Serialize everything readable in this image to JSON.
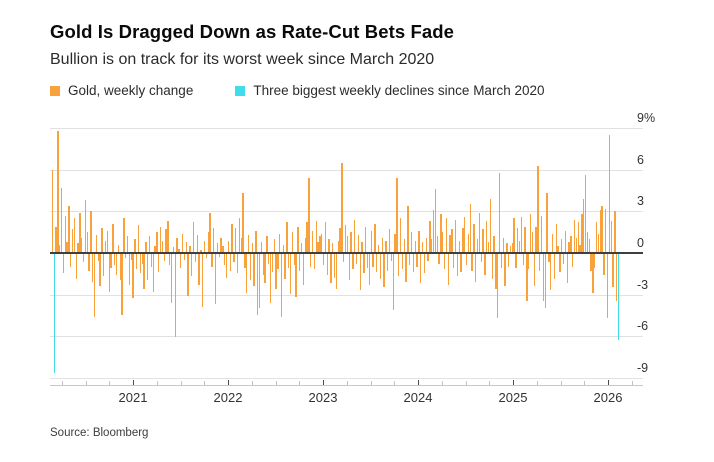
{
  "header": {
    "title": "Gold Is Dragged Down as Rate-Cut Bets Fade",
    "subtitle": "Bullion is on track for its worst week since March 2020"
  },
  "legend": {
    "items": [
      {
        "label": "Gold, weekly change",
        "color": "#F9A13A"
      },
      {
        "label": "Three biggest weekly declines since March 2020",
        "color": "#3EDDE9"
      }
    ]
  },
  "footer": {
    "source": "Source: Bloomberg"
  },
  "chart_data": {
    "type": "bar",
    "title": "Gold Is Dragged Down as Rate-Cut Bets Fade",
    "subtitle": "Bullion is on track for its worst week since March 2020",
    "unit": "%",
    "frequency": "weekly",
    "period_start": "2020-03",
    "period_end": "2026-02",
    "grid": true,
    "legend_position": "top",
    "ylim": [
      -9.5,
      9.5
    ],
    "ytick_values": [
      9,
      6,
      3,
      0,
      -3,
      -6,
      -9
    ],
    "ytick_labels": [
      "9%",
      "6",
      "3",
      "0",
      "-3",
      "-6",
      "-9"
    ],
    "xtick_labels": [
      "2021",
      "2022",
      "2023",
      "2024",
      "2025",
      "2026"
    ],
    "series_name": "Gold, weekly change",
    "series_color": "#F9A13A",
    "highlight_name": "Three biggest weekly declines since March 2020",
    "highlight_color": "#3EDDE9",
    "highlight_indexes": [
      1,
      67,
      309
    ],
    "values": [
      6.0,
      -8.6,
      1.9,
      8.8,
      0.6,
      4.7,
      -1.4,
      2.7,
      0.8,
      3.4,
      -0.9,
      1.7,
      2.5,
      -1.8,
      0.7,
      2.9,
      1.1,
      -0.6,
      3.8,
      1.5,
      -1.2,
      3.0,
      -2.0,
      -4.5,
      1.3,
      -0.5,
      -2.3,
      1.8,
      -1.6,
      0.9,
      1.6,
      -2.7,
      -1.0,
      2.1,
      -0.8,
      -1.5,
      0.6,
      -1.9,
      -4.4,
      2.5,
      -0.3,
      1.2,
      -2.2,
      -0.4,
      -3.2,
      1.0,
      -1.1,
      2.0,
      -1.4,
      -0.7,
      -2.5,
      0.8,
      -1.9,
      1.2,
      -0.9,
      -2.7,
      0.5,
      1.5,
      -1.3,
      1.9,
      0.9,
      -0.5,
      1.7,
      2.3,
      -0.8,
      -3.5,
      0.4,
      -6.0,
      1.1,
      0.3,
      -1.0,
      1.4,
      -0.4,
      0.8,
      -3.0,
      0.5,
      -1.6,
      2.2,
      -0.6,
      1.3,
      -2.2,
      0.2,
      -3.8,
      0.9,
      -0.3,
      1.5,
      2.9,
      -0.9,
      1.8,
      -3.6,
      0.7,
      -0.2,
      1.1,
      0.5,
      -0.8,
      -1.7,
      0.9,
      -1.2,
      2.1,
      -0.6,
      1.8,
      -1.4,
      2.5,
      1.1,
      4.3,
      -1.0,
      -2.8,
      1.3,
      -1.9,
      0.7,
      -2.3,
      1.6,
      -4.4,
      -3.9,
      0.8,
      -1.5,
      -2.1,
      1.2,
      -0.7,
      -3.5,
      -1.3,
      1.0,
      -2.5,
      -1.1,
      1.4,
      -4.5,
      0.6,
      -1.8,
      2.2,
      -1.0,
      -2.9,
      1.5,
      -0.8,
      -3.1,
      1.9,
      -1.2,
      0.7,
      -2.2,
      1.1,
      2.2,
      5.4,
      -0.9,
      1.6,
      -1.1,
      2.3,
      0.8,
      1.2,
      1.4,
      -0.8,
      2.2,
      -1.5,
      1.0,
      -2.1,
      0.7,
      -1.7,
      -2.5,
      0.9,
      1.8,
      6.5,
      -0.6,
      2.0,
      1.2,
      -1.9,
      1.5,
      -1.1,
      2.4,
      -0.7,
      1.3,
      -2.6,
      0.8,
      -1.4,
      1.9,
      -1.0,
      -2.2,
      1.6,
      -0.9,
      2.1,
      -1.3,
      0.6,
      -1.8,
      1.1,
      -2.4,
      0.9,
      -1.2,
      1.7,
      -0.5,
      -4.0,
      1.4,
      5.4,
      -1.6,
      2.5,
      -1.1,
      1.0,
      -2.0,
      3.4,
      -0.8,
      1.5,
      -1.3,
      0.9,
      -0.9,
      1.6,
      -2.1,
      0.8,
      -1.4,
      1.1,
      -0.5,
      2.3,
      1.0,
      3.1,
      4.6,
      1.2,
      -0.7,
      2.8,
      1.5,
      -1.1,
      2.5,
      -2.2,
      1.3,
      1.7,
      -1.0,
      2.4,
      -1.6,
      0.9,
      -1.3,
      1.8,
      2.6,
      -0.8,
      1.4,
      3.5,
      -1.2,
      2.1,
      -2.0,
      1.0,
      2.9,
      -0.6,
      1.7,
      -1.5,
      2.3,
      0.8,
      3.9,
      -1.8,
      1.2,
      -2.5,
      -4.6,
      5.8,
      -1.0,
      1.1,
      -2.3,
      0.7,
      -0.9,
      0.5,
      0.7,
      2.5,
      -1.0,
      1.8,
      0.9,
      2.6,
      -0.8,
      1.9,
      -3.4,
      -1.1,
      2.8,
      1.5,
      -2.3,
      1.9,
      6.3,
      -1.2,
      2.7,
      -3.4,
      -3.9,
      4.3,
      -0.6,
      -2.6,
      1.4,
      -1.8,
      2.1,
      0.5,
      -1.3,
      1.0,
      -0.7,
      1.6,
      -2.1,
      0.8,
      1.2,
      -0.9,
      2.4,
      1.1,
      2.2,
      0.6,
      2.8,
      3.9,
      5.6,
      1.5,
      1.0,
      -1.2,
      -2.8,
      -1.0,
      2.2,
      1.4,
      3.1,
      3.4,
      -1.5,
      3.2,
      -4.6,
      8.5,
      2.3,
      -2.4,
      3.0,
      -3.4,
      -6.2
    ]
  }
}
